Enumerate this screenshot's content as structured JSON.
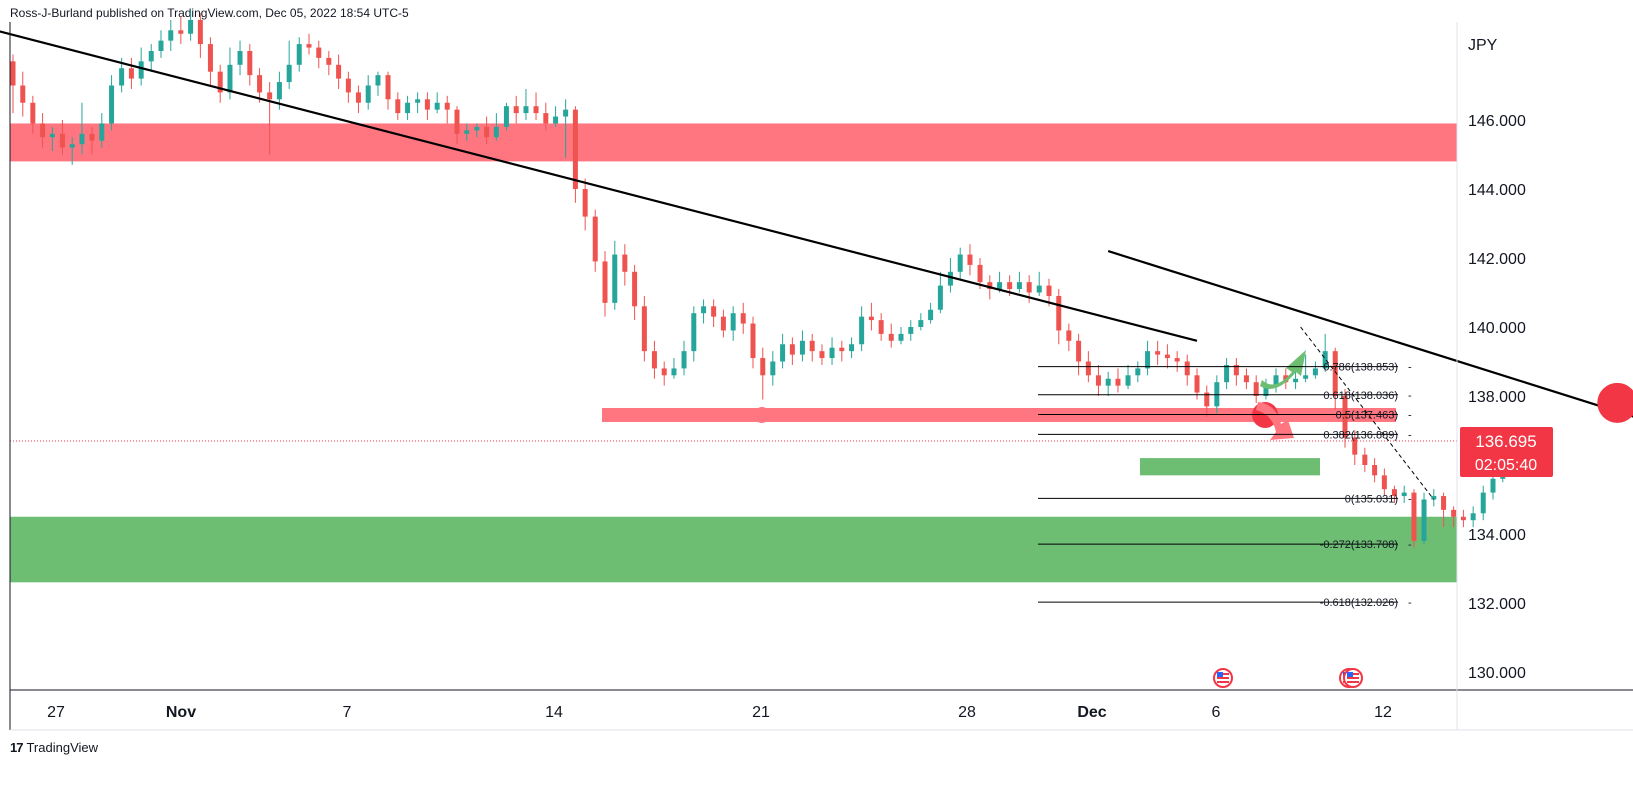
{
  "attribution": "Ross-J-Burland published on TradingView.com, Dec 05, 2022 18:54 UTC-5",
  "footer": {
    "brand": "TradingView",
    "logo_glyph": "17"
  },
  "colors": {
    "bull": "#26a69a",
    "bear": "#ef5350",
    "resistance_zone": "#ff7680",
    "support_zone": "#6dbd73",
    "trendline": "#000000",
    "price_label_bg": "#f23645",
    "price_line": "#f23645"
  },
  "chart_data": {
    "type": "candlestick",
    "symbol_currency": "JPY",
    "y_axis": {
      "ticks": [
        "146.000",
        "144.000",
        "142.000",
        "140.000",
        "138.000",
        "136.000",
        "134.000",
        "132.000",
        "130.000"
      ],
      "range": [
        129.5,
        148.2
      ]
    },
    "x_axis": {
      "ticks": [
        "27",
        "Nov",
        "7",
        "14",
        "21",
        "28",
        "Dec",
        "6",
        "12"
      ]
    },
    "last_price": {
      "value": "136.695",
      "countdown": "02:05:40"
    },
    "fibonacci_levels": [
      {
        "ratio": "0.786",
        "price": "138.853",
        "label": "0.786(138.853)"
      },
      {
        "ratio": "0.618",
        "price": "138.036",
        "label": "0.618(138.036)"
      },
      {
        "ratio": "0.5",
        "price": "137.463",
        "label": "0.5(137.463)"
      },
      {
        "ratio": "0.382",
        "price": "136.889",
        "label": "0.382(136.889)"
      },
      {
        "ratio": "0",
        "price": "135.031",
        "label": "0(135.031)"
      },
      {
        "ratio": "-0.272",
        "price": "133.708",
        "label": "-0.272(133.708)"
      },
      {
        "ratio": "-0.618",
        "price": "132.026",
        "label": "-0.618(132.026)"
      }
    ],
    "zones": [
      {
        "name": "resistance",
        "from": 144.8,
        "to": 145.9
      },
      {
        "name": "support",
        "from": 132.6,
        "to": 134.5
      }
    ],
    "horizontal_level": 137.45,
    "small_support_zone": {
      "from": 135.7,
      "to": 136.2
    },
    "candles": [
      [
        0,
        147.7,
        147.0,
        147.9,
        146.2
      ],
      [
        0.33,
        147.0,
        146.5,
        147.4,
        146.1
      ],
      [
        0.67,
        146.5,
        145.9,
        146.7,
        145.6
      ],
      [
        1,
        145.9,
        145.5,
        146.2,
        145.2
      ],
      [
        1.33,
        145.5,
        145.6,
        145.8,
        145.1
      ],
      [
        1.67,
        145.6,
        145.2,
        146.0,
        145.0
      ],
      [
        2,
        145.2,
        145.3,
        145.5,
        144.7
      ],
      [
        2.33,
        145.3,
        145.6,
        146.5,
        145.0
      ],
      [
        2.67,
        145.6,
        145.4,
        145.8,
        145.0
      ],
      [
        3,
        145.4,
        145.9,
        146.2,
        145.2
      ],
      [
        3.33,
        145.9,
        147.0,
        147.3,
        145.7
      ],
      [
        3.67,
        147.0,
        147.5,
        147.8,
        146.8
      ],
      [
        4,
        147.5,
        147.2,
        147.8,
        146.9
      ],
      [
        4.33,
        147.2,
        147.7,
        148.1,
        147.0
      ],
      [
        4.67,
        147.7,
        148.0,
        148.2,
        147.4
      ],
      [
        5,
        148.0,
        148.3,
        148.6,
        147.8
      ],
      [
        5.33,
        148.3,
        148.6,
        148.9,
        148.0
      ],
      [
        5.67,
        148.6,
        148.5,
        149.0,
        148.2
      ],
      [
        6,
        148.5,
        148.9,
        149.2,
        148.3
      ],
      [
        6.33,
        148.9,
        148.2,
        149.1,
        147.8
      ],
      [
        6.67,
        148.2,
        147.4,
        148.4,
        147.0
      ],
      [
        7,
        147.4,
        146.8,
        147.6,
        146.5
      ],
      [
        7.33,
        146.8,
        147.6,
        148.1,
        146.6
      ],
      [
        7.67,
        147.6,
        148.0,
        148.3,
        147.3
      ],
      [
        8,
        148.0,
        147.3,
        148.2,
        147.0
      ],
      [
        8.33,
        147.3,
        146.8,
        147.5,
        146.5
      ],
      [
        8.67,
        146.8,
        146.6,
        147.1,
        145.0
      ],
      [
        9,
        146.6,
        147.1,
        147.4,
        146.3
      ],
      [
        9.33,
        147.1,
        147.6,
        148.3,
        146.9
      ],
      [
        9.67,
        147.6,
        148.2,
        148.4,
        147.4
      ],
      [
        10,
        148.2,
        148.1,
        148.5,
        147.9
      ],
      [
        10.33,
        148.1,
        147.8,
        148.3,
        147.5
      ],
      [
        10.67,
        147.8,
        147.6,
        148.0,
        147.3
      ],
      [
        11,
        147.6,
        147.2,
        147.9,
        146.9
      ],
      [
        11.33,
        147.2,
        146.8,
        147.4,
        146.5
      ],
      [
        11.67,
        146.8,
        146.5,
        147.0,
        146.2
      ],
      [
        12,
        146.5,
        147.0,
        147.3,
        146.3
      ],
      [
        12.33,
        147.0,
        147.3,
        147.4,
        146.7
      ],
      [
        12.67,
        147.3,
        146.6,
        147.4,
        146.3
      ],
      [
        13,
        146.6,
        146.2,
        146.8,
        146.0
      ],
      [
        13.33,
        146.2,
        146.5,
        146.7,
        146.0
      ],
      [
        13.67,
        146.5,
        146.6,
        146.8,
        146.2
      ],
      [
        14,
        146.6,
        146.3,
        146.8,
        146.0
      ],
      [
        14.33,
        146.3,
        146.5,
        146.8,
        146.2
      ],
      [
        14.67,
        146.5,
        146.3,
        146.7,
        145.9
      ],
      [
        15,
        146.3,
        145.6,
        146.4,
        145.3
      ],
      [
        15.33,
        145.6,
        145.7,
        145.9,
        145.4
      ],
      [
        15.67,
        145.7,
        145.8,
        145.9,
        145.5
      ],
      [
        16,
        145.8,
        145.5,
        146.1,
        145.3
      ],
      [
        16.33,
        145.5,
        145.8,
        146.2,
        145.4
      ],
      [
        16.67,
        145.8,
        146.4,
        146.5,
        145.7
      ],
      [
        17,
        146.4,
        146.2,
        146.7,
        145.9
      ],
      [
        17.33,
        146.2,
        146.4,
        146.9,
        146.0
      ],
      [
        17.67,
        146.4,
        146.2,
        146.8,
        146.0
      ],
      [
        18,
        146.2,
        145.9,
        146.5,
        145.7
      ],
      [
        18.33,
        145.9,
        146.1,
        146.4,
        145.8
      ],
      [
        18.67,
        146.1,
        146.3,
        146.6,
        144.9
      ],
      [
        19,
        146.3,
        144.0,
        146.4,
        143.6
      ],
      [
        19.33,
        144.0,
        143.2,
        144.3,
        142.8
      ],
      [
        19.67,
        143.2,
        141.9,
        143.4,
        141.6
      ],
      [
        20,
        141.9,
        140.7,
        142.2,
        140.3
      ],
      [
        20.33,
        140.7,
        142.1,
        142.5,
        140.5
      ],
      [
        20.67,
        142.1,
        141.6,
        142.4,
        141.2
      ],
      [
        21,
        141.6,
        140.6,
        141.8,
        140.2
      ],
      [
        21.33,
        140.6,
        139.3,
        140.9,
        139.0
      ],
      [
        21.67,
        139.3,
        138.8,
        139.6,
        138.5
      ],
      [
        22,
        138.8,
        138.6,
        139.0,
        138.3
      ],
      [
        22.33,
        138.6,
        138.8,
        139.1,
        138.5
      ],
      [
        22.67,
        138.8,
        139.3,
        139.6,
        138.6
      ],
      [
        23,
        139.3,
        140.4,
        140.6,
        139.0
      ],
      [
        23.33,
        140.4,
        140.6,
        140.8,
        140.1
      ],
      [
        23.67,
        140.6,
        140.3,
        140.8,
        140.0
      ],
      [
        24,
        140.3,
        139.9,
        140.5,
        139.7
      ],
      [
        24.33,
        139.9,
        140.4,
        140.6,
        139.6
      ],
      [
        24.67,
        140.4,
        140.1,
        140.7,
        139.8
      ],
      [
        25,
        140.1,
        139.1,
        140.3,
        138.8
      ],
      [
        25.33,
        139.1,
        138.6,
        139.4,
        137.9
      ],
      [
        25.67,
        138.6,
        139.0,
        139.3,
        138.3
      ],
      [
        26,
        139.0,
        139.5,
        139.8,
        138.8
      ],
      [
        26.33,
        139.5,
        139.2,
        139.7,
        138.9
      ],
      [
        26.67,
        139.2,
        139.6,
        139.9,
        139.0
      ],
      [
        27,
        139.6,
        139.3,
        139.8,
        139.0
      ],
      [
        27.33,
        139.3,
        139.1,
        139.5,
        138.9
      ],
      [
        27.67,
        139.1,
        139.4,
        139.7,
        138.9
      ],
      [
        28,
        139.4,
        139.3,
        139.6,
        139.0
      ],
      [
        28.33,
        139.3,
        139.5,
        139.7,
        139.1
      ],
      [
        28.67,
        139.5,
        140.3,
        140.6,
        139.3
      ],
      [
        29,
        140.3,
        140.2,
        140.7,
        139.9
      ],
      [
        29.33,
        140.2,
        139.8,
        140.4,
        139.6
      ],
      [
        29.67,
        139.8,
        139.6,
        140.1,
        139.4
      ],
      [
        30,
        139.6,
        139.8,
        140.0,
        139.5
      ],
      [
        30.33,
        139.8,
        140.0,
        140.2,
        139.6
      ],
      [
        30.67,
        140.0,
        140.2,
        140.4,
        139.9
      ],
      [
        31,
        140.2,
        140.5,
        140.7,
        140.1
      ],
      [
        31.33,
        140.5,
        141.2,
        141.6,
        140.4
      ],
      [
        31.67,
        141.2,
        141.6,
        142.0,
        141.0
      ],
      [
        32,
        141.6,
        142.1,
        142.3,
        141.4
      ],
      [
        32.33,
        142.1,
        141.8,
        142.4,
        141.5
      ],
      [
        32.67,
        141.8,
        141.3,
        142.0,
        141.1
      ],
      [
        33,
        141.3,
        141.1,
        141.5,
        140.8
      ],
      [
        33.33,
        141.1,
        141.3,
        141.6,
        141.0
      ],
      [
        33.67,
        141.3,
        141.1,
        141.5,
        140.9
      ],
      [
        34,
        141.1,
        141.3,
        141.6,
        141.0
      ],
      [
        34.33,
        141.3,
        141.0,
        141.5,
        140.7
      ],
      [
        34.67,
        141.0,
        141.2,
        141.6,
        140.9
      ],
      [
        35,
        141.2,
        140.9,
        141.4,
        140.6
      ],
      [
        35.33,
        140.9,
        139.9,
        141.1,
        139.5
      ],
      [
        35.67,
        139.9,
        139.6,
        140.1,
        139.3
      ],
      [
        36,
        139.6,
        139.0,
        139.8,
        138.6
      ],
      [
        36.33,
        139.0,
        138.6,
        139.3,
        138.4
      ],
      [
        36.67,
        138.6,
        138.3,
        138.9,
        138.0
      ],
      [
        37,
        138.3,
        138.5,
        138.7,
        138.0
      ],
      [
        37.33,
        138.5,
        138.3,
        138.8,
        138.1
      ],
      [
        37.67,
        138.3,
        138.6,
        138.9,
        138.2
      ],
      [
        38,
        138.6,
        138.8,
        139.0,
        138.4
      ],
      [
        38.33,
        138.8,
        139.3,
        139.6,
        138.6
      ],
      [
        38.67,
        139.3,
        139.2,
        139.6,
        138.9
      ],
      [
        39,
        139.2,
        139.1,
        139.5,
        138.8
      ],
      [
        39.33,
        139.1,
        139.0,
        139.3,
        138.7
      ],
      [
        39.67,
        139.0,
        138.6,
        139.2,
        138.3
      ],
      [
        40,
        138.6,
        138.1,
        138.8,
        137.9
      ],
      [
        40.33,
        138.1,
        137.7,
        138.3,
        137.4
      ],
      [
        40.67,
        137.7,
        138.4,
        138.6,
        137.5
      ],
      [
        41,
        138.4,
        138.9,
        139.1,
        138.2
      ],
      [
        41.33,
        138.9,
        138.6,
        139.1,
        138.3
      ],
      [
        41.67,
        138.6,
        138.4,
        138.8,
        138.2
      ],
      [
        42,
        138.4,
        138.0,
        138.6,
        137.8
      ],
      [
        42.33,
        138.0,
        138.3,
        138.5,
        137.9
      ],
      [
        42.67,
        138.3,
        138.6,
        138.8,
        138.1
      ],
      [
        43,
        138.6,
        138.4,
        138.8,
        138.2
      ],
      [
        43.33,
        138.4,
        138.5,
        138.8,
        138.2
      ],
      [
        43.67,
        138.5,
        138.6,
        139.2,
        138.4
      ],
      [
        44,
        138.6,
        138.8,
        139.0,
        138.5
      ],
      [
        44.33,
        138.8,
        139.3,
        139.8,
        138.7
      ],
      [
        44.67,
        139.3,
        138.0,
        139.4,
        137.6
      ],
      [
        45,
        138.0,
        136.8,
        138.2,
        136.5
      ],
      [
        45.33,
        136.8,
        136.3,
        137.0,
        136.0
      ],
      [
        45.67,
        136.3,
        136.0,
        136.5,
        135.8
      ],
      [
        46,
        136.0,
        135.7,
        136.2,
        135.5
      ],
      [
        46.33,
        135.7,
        135.3,
        135.9,
        135.1
      ],
      [
        46.67,
        135.3,
        135.1,
        135.4,
        134.9
      ],
      [
        47,
        135.1,
        135.2,
        135.4,
        134.9
      ],
      [
        47.33,
        135.2,
        133.8,
        135.3,
        133.6
      ],
      [
        47.67,
        133.8,
        135.0,
        135.2,
        133.7
      ],
      [
        48,
        135.0,
        135.1,
        135.3,
        134.8
      ],
      [
        48.33,
        135.1,
        134.7,
        135.2,
        134.2
      ],
      [
        48.67,
        134.7,
        134.5,
        134.8,
        134.2
      ],
      [
        49,
        134.5,
        134.4,
        134.7,
        134.2
      ],
      [
        49.33,
        134.4,
        134.6,
        134.8,
        134.2
      ],
      [
        49.67,
        134.6,
        135.2,
        135.4,
        134.4
      ],
      [
        50,
        135.2,
        135.6,
        135.9,
        135.0
      ],
      [
        50.33,
        135.6,
        136.6,
        136.8,
        135.5
      ],
      [
        50.67,
        136.6,
        136.7,
        136.8,
        136.5
      ],
      [
        51,
        136.7,
        136.7,
        136.8,
        136.6
      ]
    ]
  },
  "annotations": {
    "trendline_1": {
      "from": [
        -0.6,
        148.6
      ],
      "to": [
        40.0,
        139.6
      ]
    },
    "trendline_2": {
      "from": [
        37.0,
        142.2
      ],
      "to": [
        59.2,
        136.2
      ]
    },
    "dashed_projection": {
      "from": [
        43.5,
        140.0
      ],
      "to": [
        48.0,
        135.0
      ]
    },
    "markers": [
      {
        "name": "pivot-left",
        "t": 25.3,
        "p": 137.45,
        "size": "small"
      },
      {
        "name": "pivot-mid",
        "t": 42.3,
        "p": 137.45,
        "size": "medium"
      },
      {
        "name": "pivot-confluence",
        "t": 54.2,
        "p": 137.8,
        "size": "large"
      }
    ]
  }
}
